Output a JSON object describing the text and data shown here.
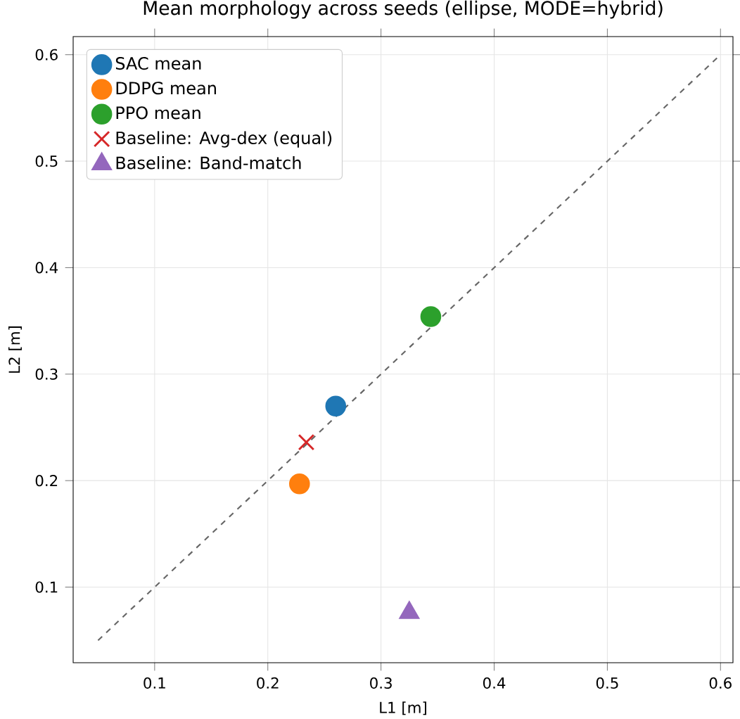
{
  "chart_data": {
    "type": "scatter",
    "title": "Mean morphology across seeds (ellipse, MODE=hybrid)",
    "xlabel": "L1 [m]",
    "ylabel": "L2 [m]",
    "xlim": [
      0.028,
      0.611
    ],
    "ylim": [
      0.029,
      0.617
    ],
    "xticks": [
      0.1,
      0.2,
      0.3,
      0.4,
      0.5,
      0.6
    ],
    "yticks": [
      0.1,
      0.2,
      0.3,
      0.4,
      0.5,
      0.6
    ],
    "grid": true,
    "legend": "top left",
    "series": [
      {
        "type": "line",
        "color": "#666666",
        "line_style": "dashed",
        "marker": "none",
        "x": [
          0.05,
          0.6
        ],
        "values": [
          0.05,
          0.6
        ]
      },
      {
        "name": "SAC mean",
        "color": "#1f77b4",
        "marker": "circle",
        "x": [
          0.26
        ],
        "values": [
          0.27
        ]
      },
      {
        "name": "DDPG mean",
        "color": "#ff7f0e",
        "marker": "circle",
        "x": [
          0.228
        ],
        "values": [
          0.197
        ]
      },
      {
        "name": "PPO mean",
        "color": "#2ca02c",
        "marker": "circle",
        "x": [
          0.344
        ],
        "values": [
          0.354
        ]
      },
      {
        "name": "Baseline: Avg-dex (equal)",
        "color": "#d62728",
        "marker": "cross",
        "x": [
          0.234
        ],
        "values": [
          0.236
        ]
      },
      {
        "name": "Baseline: Band-match",
        "color": "#9467bd",
        "marker": "triangle",
        "x": [
          0.325
        ],
        "values": [
          0.076
        ]
      }
    ]
  }
}
